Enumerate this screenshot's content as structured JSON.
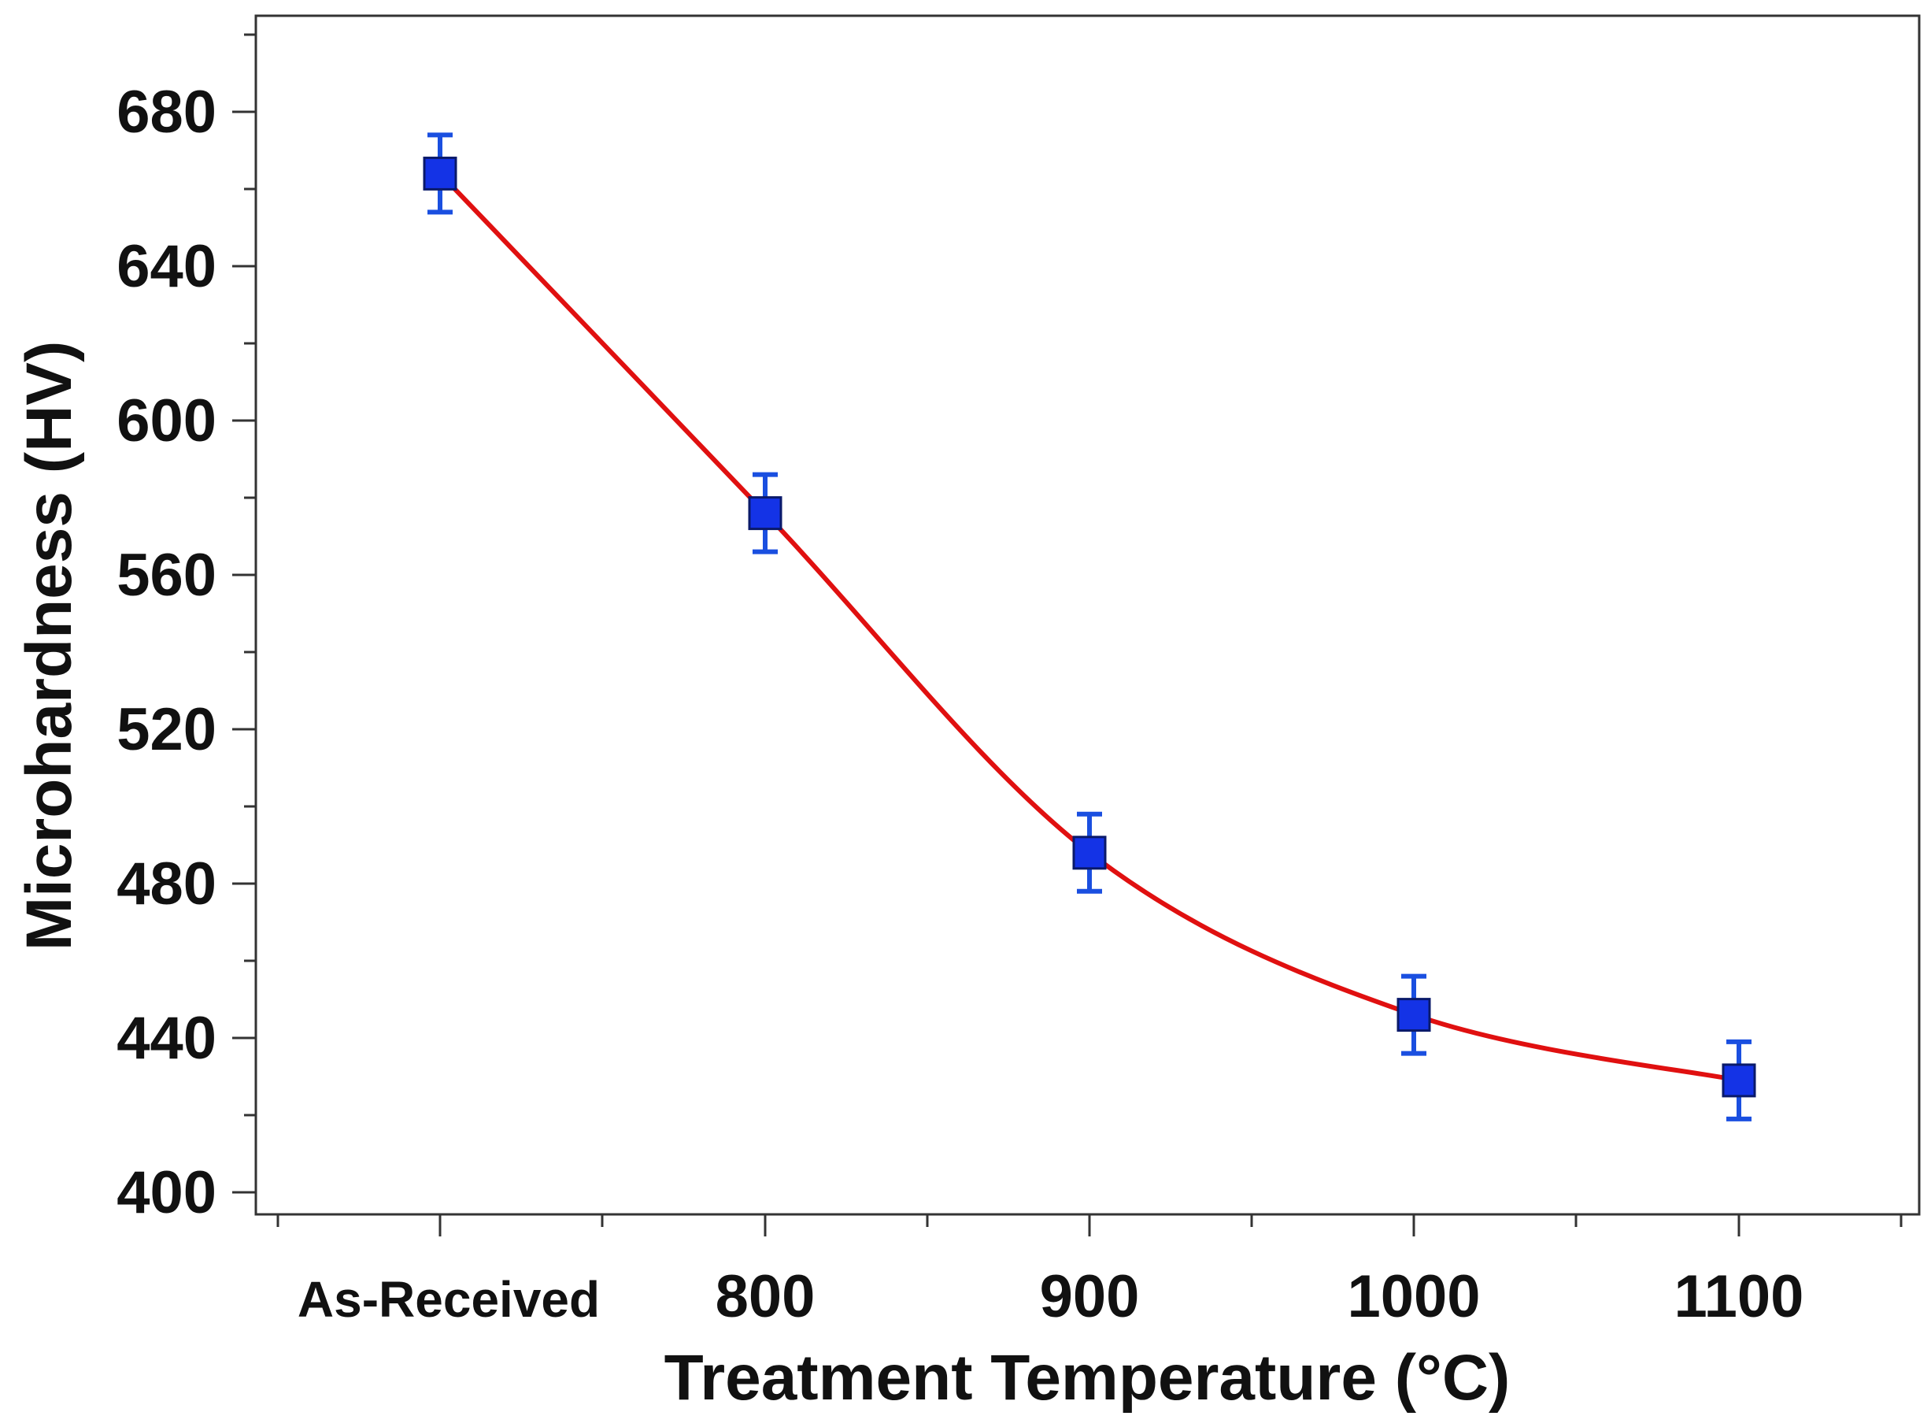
{
  "chart_data": {
    "type": "scatter",
    "xlabel": "Treatment Temperature (°C)",
    "ylabel": "Microhardness (HV)",
    "categories": [
      "As-Received",
      "800",
      "900",
      "1000",
      "1100"
    ],
    "series": [
      {
        "values": [
          664,
          576,
          488,
          446,
          429
        ],
        "errors": [
          10,
          10,
          10,
          10,
          10
        ],
        "marker": "square",
        "color": "#1433e6",
        "error_color": "#1a4fe0",
        "fit": "polynomial",
        "fit_color": "#e01010"
      }
    ],
    "ylim": [
      395,
      705
    ],
    "yticks": [
      400,
      440,
      480,
      520,
      560,
      600,
      640,
      680
    ],
    "grid": false,
    "legend": "none"
  }
}
